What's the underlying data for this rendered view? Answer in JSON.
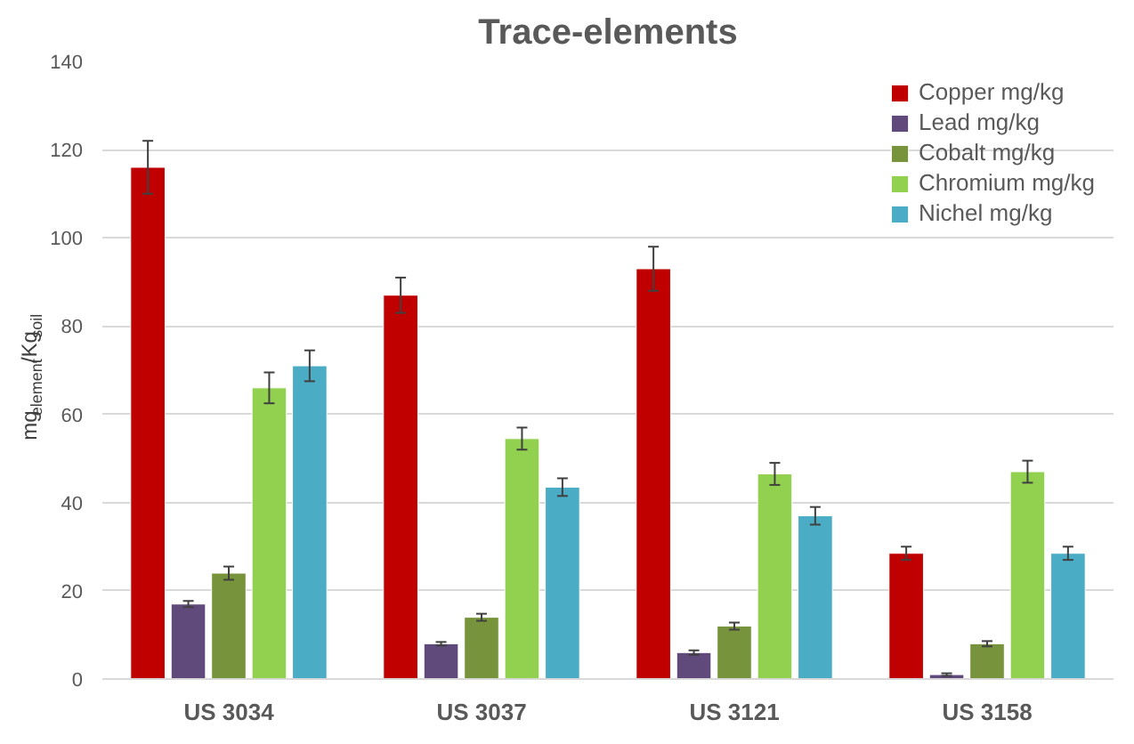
{
  "chart_data": {
    "type": "bar",
    "title": "Trace-elements",
    "ylabel": "mg$_{element}$/Kg$_{soil}$",
    "categories": [
      "US 3034",
      "US 3037",
      "US 3121",
      "US 3158"
    ],
    "series": [
      {
        "name": "Copper mg/kg",
        "color": "#c00000",
        "values": [
          116,
          87,
          93,
          28.5
        ],
        "errors": [
          6,
          4,
          5,
          1.5
        ]
      },
      {
        "name": "Lead mg/kg",
        "color": "#604a7b",
        "values": [
          17,
          8,
          6,
          1
        ],
        "errors": [
          0.7,
          0.4,
          0.5,
          0.3
        ]
      },
      {
        "name": "Cobalt mg/kg",
        "color": "#77933c",
        "values": [
          24,
          14,
          12,
          8
        ],
        "errors": [
          1.5,
          0.8,
          0.8,
          0.6
        ]
      },
      {
        "name": "Chromium mg/kg",
        "color": "#92d050",
        "values": [
          66,
          54.5,
          46.5,
          47
        ],
        "errors": [
          3.5,
          2.5,
          2.5,
          2.5
        ]
      },
      {
        "name": "Nichel mg/kg",
        "color": "#4bacc6",
        "values": [
          71,
          43.5,
          37,
          28.5
        ],
        "errors": [
          3.5,
          2,
          2,
          1.5
        ]
      }
    ],
    "ylim": [
      0,
      140
    ],
    "yticks": [
      0,
      20,
      40,
      60,
      80,
      100,
      120,
      140
    ],
    "grid": "y",
    "legend": "top right"
  }
}
